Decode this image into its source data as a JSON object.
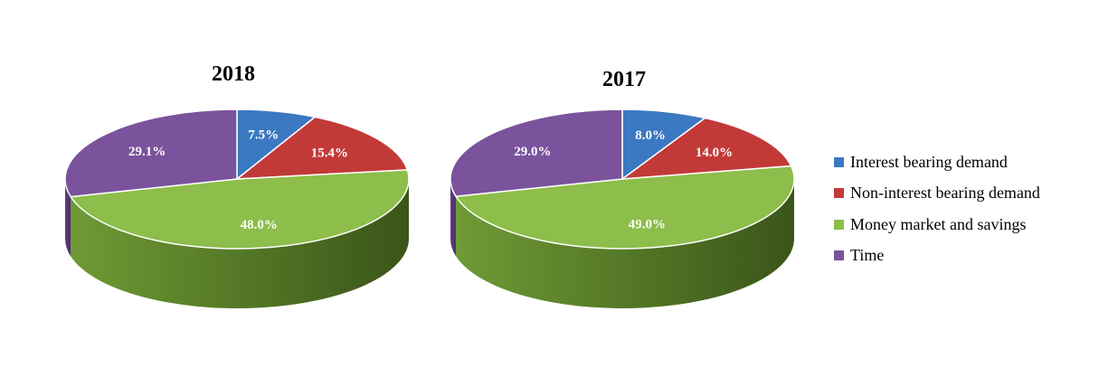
{
  "chart_data": {
    "type": "pie",
    "style": "3d",
    "legend": "right",
    "series_names": [
      "Interest bearing demand",
      "Non-interest bearing demand",
      "Money market and savings",
      "Time"
    ],
    "colors": [
      "#3b78c2",
      "#c23a38",
      "#8dbd4a",
      "#7a539c"
    ],
    "charts": [
      {
        "title": "2018",
        "values": [
          7.5,
          15.4,
          48.0,
          29.1
        ],
        "labels": [
          "7.5%",
          "15.4%",
          "48.0%",
          "29.1%"
        ]
      },
      {
        "title": "2017",
        "values": [
          8.0,
          14.0,
          49.0,
          29.0
        ],
        "labels": [
          "8.0%",
          "14.0%",
          "49.0%",
          "29.0%"
        ]
      }
    ]
  }
}
